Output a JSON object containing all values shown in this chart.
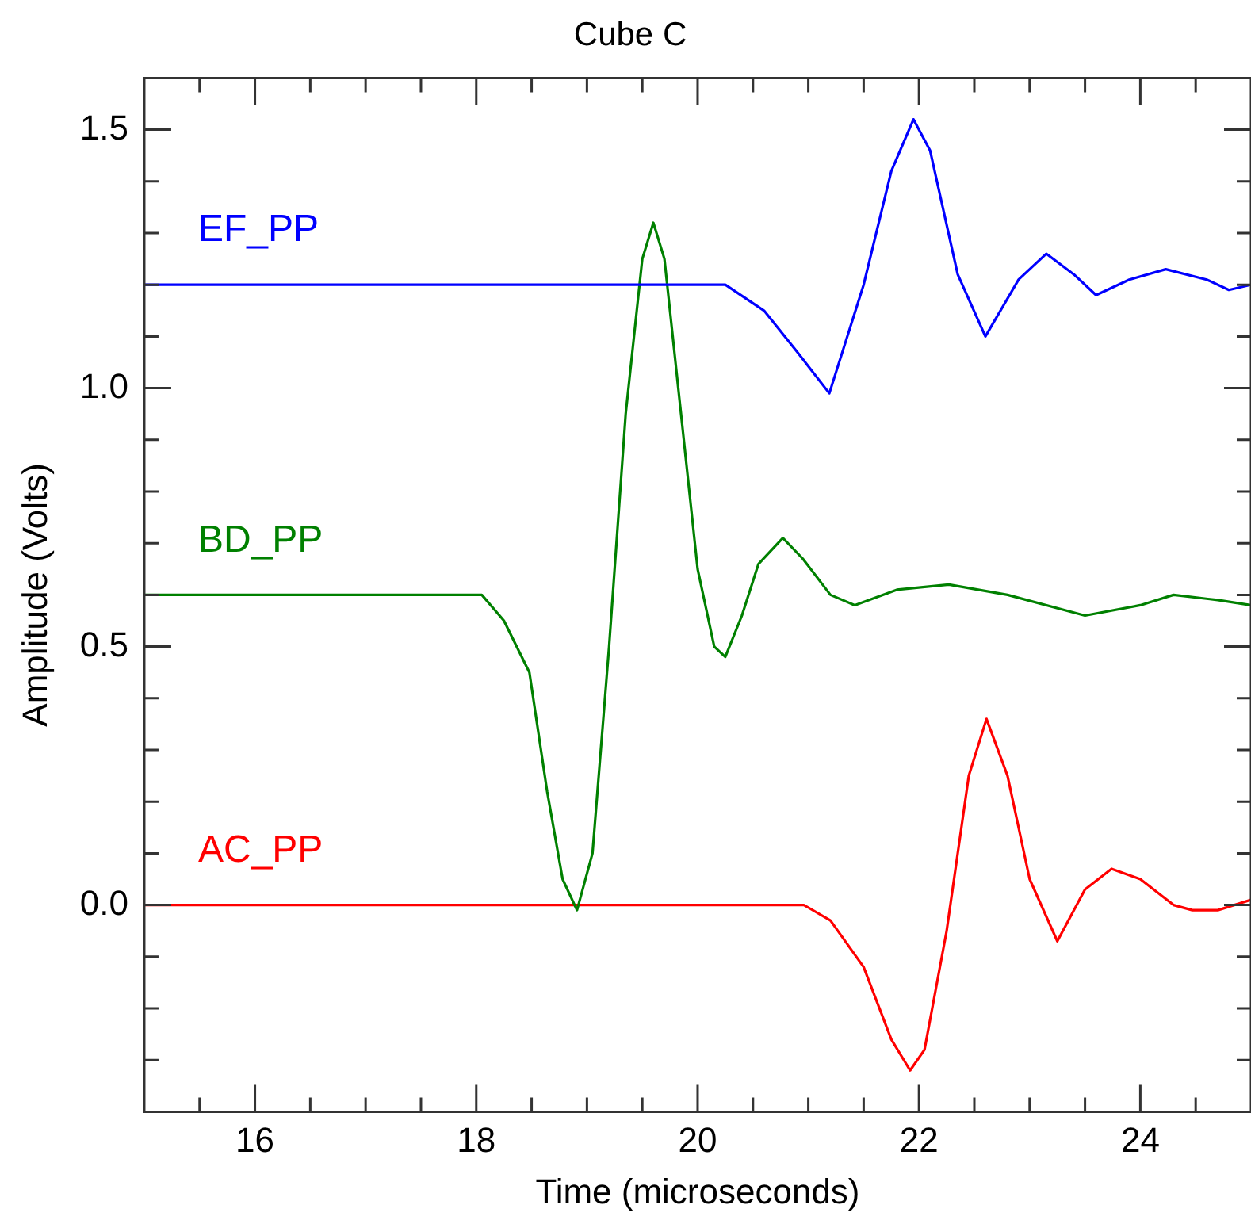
{
  "chart_data": {
    "type": "line",
    "title": "Cube C",
    "xlabel": "Time (microseconds)",
    "ylabel": "Amplitude (Volts)",
    "xlim": [
      15,
      25
    ],
    "ylim": [
      -0.4,
      1.6
    ],
    "xticks": [
      {
        "value": 15.5,
        "label": null
      },
      16,
      {
        "value": 16.5,
        "label": null
      },
      {
        "value": 17,
        "label": null
      },
      {
        "value": 17.5,
        "label": null
      },
      18,
      {
        "value": 18.5,
        "label": null
      },
      {
        "value": 19,
        "label": null
      },
      {
        "value": 19.5,
        "label": null
      },
      20,
      {
        "value": 20.5,
        "label": null
      },
      {
        "value": 21,
        "label": null
      },
      {
        "value": 21.5,
        "label": null
      },
      22,
      {
        "value": 22.5,
        "label": null
      },
      {
        "value": 23,
        "label": null
      },
      {
        "value": 23.5,
        "label": null
      },
      24,
      {
        "value": 24.5,
        "label": null
      }
    ],
    "yticks": [
      {
        "value": -0.3,
        "label": null
      },
      {
        "value": -0.2,
        "label": null
      },
      {
        "value": -0.1,
        "label": null
      },
      {
        "value": 0,
        "label": "0.0"
      },
      {
        "value": 0.1,
        "label": null
      },
      {
        "value": 0.2,
        "label": null
      },
      {
        "value": 0.3,
        "label": null
      },
      {
        "value": 0.4,
        "label": null
      },
      0.5,
      {
        "value": 0.6,
        "label": null
      },
      {
        "value": 0.7,
        "label": null
      },
      {
        "value": 0.8,
        "label": null
      },
      {
        "value": 0.9,
        "label": null
      },
      {
        "value": 1,
        "label": "1.0"
      },
      {
        "value": 1.1,
        "label": null
      },
      {
        "value": 1.2,
        "label": null
      },
      {
        "value": 1.3,
        "label": null
      },
      {
        "value": 1.4,
        "label": null
      },
      1.5
    ],
    "grid": false,
    "legend": false,
    "marker": "none",
    "line_style": "solid",
    "series": [
      {
        "name": "EF_PP",
        "color": "#0000ff",
        "x": [
          15,
          16,
          17,
          18,
          19,
          20,
          20.25,
          20.6,
          20.9,
          21.19,
          21.5,
          21.75,
          21.95,
          22.1,
          22.35,
          22.6,
          22.9,
          23.15,
          23.4,
          23.6,
          23.9,
          24.23,
          24.6,
          24.8,
          25
        ],
        "values": [
          1.2,
          1.2,
          1.2,
          1.2,
          1.2,
          1.2,
          1.2,
          1.15,
          1.07,
          0.99,
          1.2,
          1.42,
          1.52,
          1.46,
          1.22,
          1.1,
          1.21,
          1.26,
          1.22,
          1.18,
          1.21,
          1.23,
          1.21,
          1.19,
          1.2
        ]
      },
      {
        "name": "BD_PP",
        "color": "#008000",
        "x": [
          15,
          16,
          17,
          18.05,
          18.25,
          18.48,
          18.64,
          18.78,
          18.91,
          19.05,
          19.2,
          19.35,
          19.5,
          19.6,
          19.7,
          19.85,
          20,
          20.15,
          20.25,
          20.4,
          20.55,
          20.77,
          20.95,
          21.2,
          21.42,
          21.8,
          22.27,
          22.8,
          23.5,
          24,
          24.3,
          24.7,
          25
        ],
        "values": [
          0.6,
          0.6,
          0.6,
          0.6,
          0.55,
          0.45,
          0.22,
          0.05,
          -0.01,
          0.1,
          0.5,
          0.95,
          1.25,
          1.32,
          1.25,
          0.95,
          0.65,
          0.5,
          0.48,
          0.56,
          0.66,
          0.71,
          0.67,
          0.6,
          0.58,
          0.61,
          0.62,
          0.6,
          0.56,
          0.58,
          0.6,
          0.59,
          0.58
        ]
      },
      {
        "name": "AC_PP",
        "color": "#ff0000",
        "x": [
          15,
          16,
          17,
          18,
          19,
          20,
          20.96,
          21.2,
          21.5,
          21.75,
          21.92,
          22.05,
          22.25,
          22.45,
          22.61,
          22.8,
          23,
          23.25,
          23.5,
          23.74,
          24,
          24.3,
          24.47,
          24.7,
          25
        ],
        "values": [
          0,
          0,
          0,
          0,
          0,
          0,
          0,
          -0.03,
          -0.12,
          -0.26,
          -0.32,
          -0.28,
          -0.05,
          0.25,
          0.36,
          0.25,
          0.05,
          -0.07,
          0.03,
          0.07,
          0.05,
          0,
          -0.01,
          -0.01,
          0.01
        ]
      }
    ]
  }
}
